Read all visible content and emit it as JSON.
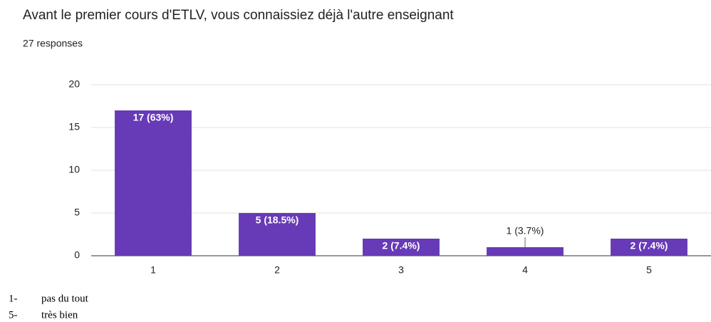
{
  "chart_data": {
    "type": "bar",
    "title": "Avant le premier cours d'ETLV, vous connaissiez déjà l'autre enseignant",
    "subtitle": "27 responses",
    "categories": [
      "1",
      "2",
      "3",
      "4",
      "5"
    ],
    "values": [
      17,
      5,
      2,
      1,
      2
    ],
    "value_labels": [
      "17 (63%)",
      "5 (18.5%)",
      "2 (7.4%)",
      "1 (3.7%)",
      "2 (7.4%)"
    ],
    "color": "#673ab7",
    "ylim": [
      0,
      20
    ],
    "yticks": [
      0,
      5,
      10,
      15,
      20
    ],
    "grid": true
  },
  "notes": [
    {
      "marker": "1-",
      "text": "pas du tout"
    },
    {
      "marker": "5-",
      "text": "très bien"
    }
  ]
}
